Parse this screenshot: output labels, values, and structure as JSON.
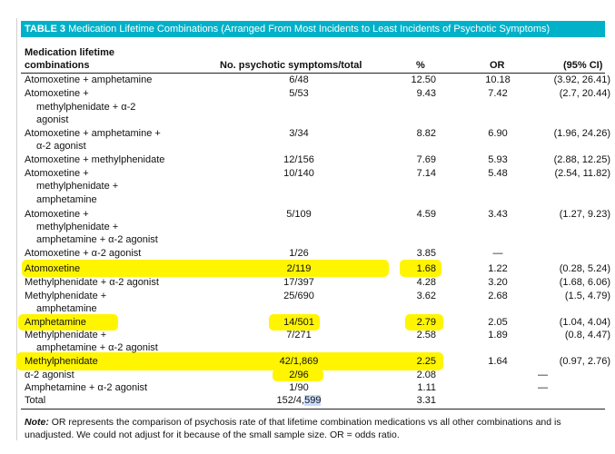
{
  "table": {
    "label": "TABLE 3",
    "title": "Medication Lifetime Combinations (Arranged From Most Incidents to Least Incidents of Psychotic Symptoms)",
    "headers": {
      "col1_line1": "Medication lifetime",
      "col1_line2": "combinations",
      "col2": "No. psychotic symptoms/total",
      "col3": "%",
      "col4": "OR",
      "col5": "(95% CI)"
    },
    "rows": [
      {
        "name": [
          "Atomoxetine + amphetamine"
        ],
        "ratio": "6/48",
        "pct": "12.50",
        "or": "10.18",
        "ci": "(3.92, 26.41)"
      },
      {
        "name": [
          "Atomoxetine +",
          "methylphenidate + α-2",
          "agonist"
        ],
        "ratio": "5/53",
        "pct": "9.43",
        "or": "7.42",
        "ci": "(2.7, 20.44)"
      },
      {
        "name": [
          "Atomoxetine + amphetamine +",
          "α-2 agonist"
        ],
        "ratio": "3/34",
        "pct": "8.82",
        "or": "6.90",
        "ci": "(1.96, 24.26)"
      },
      {
        "name": [
          "Atomoxetine + methylphenidate"
        ],
        "ratio": "12/156",
        "pct": "7.69",
        "or": "5.93",
        "ci": "(2.88, 12.25)"
      },
      {
        "name": [
          "Atomoxetine +",
          "methylphenidate +",
          "amphetamine"
        ],
        "ratio": "10/140",
        "pct": "7.14",
        "or": "5.48",
        "ci": "(2.54, 11.82)"
      },
      {
        "name": [
          "Atomoxetine +",
          "methylphenidate +",
          "amphetamine + α-2 agonist"
        ],
        "ratio": "5/109",
        "pct": "4.59",
        "or": "3.43",
        "ci": "(1.27, 9.23)"
      },
      {
        "name": [
          "Atomoxetine + α-2 agonist"
        ],
        "ratio": "1/26",
        "pct": "3.85",
        "or": "—",
        "ci": ""
      },
      {
        "name": [
          "Atomoxetine"
        ],
        "ratio": "2/119",
        "pct": "1.68",
        "or": "1.22",
        "ci": "(0.28, 5.24)"
      },
      {
        "name": [
          "Methylphenidate + α-2 agonist"
        ],
        "ratio": "17/397",
        "pct": "4.28",
        "or": "3.20",
        "ci": "(1.68, 6.06)"
      },
      {
        "name": [
          "Methylphenidate +",
          "amphetamine"
        ],
        "ratio": "25/690",
        "pct": "3.62",
        "or": "2.68",
        "ci": "(1.5, 4.79)"
      },
      {
        "name": [
          "Amphetamine"
        ],
        "ratio": "14/501",
        "pct": "2.79",
        "or": "2.05",
        "ci": "(1.04, 4.04)"
      },
      {
        "name": [
          "Methylphenidate +",
          "amphetamine + α-2 agonist"
        ],
        "ratio": "7/271",
        "pct": "2.58",
        "or": "1.89",
        "ci": "(0.8, 4.47)"
      },
      {
        "name": [
          "Methylphenidate"
        ],
        "ratio": "42/1,869",
        "pct": "2.25",
        "or": "1.64",
        "ci": "(0.97, 2.76)"
      },
      {
        "name": [
          "α-2 agonist"
        ],
        "ratio": "2/96",
        "pct": "2.08",
        "or": "",
        "ci": "—"
      },
      {
        "name": [
          "Amphetamine + α-2 agonist"
        ],
        "ratio": "1/90",
        "pct": "1.11",
        "or": "",
        "ci": "—"
      },
      {
        "name": [
          "Total"
        ],
        "ratio_a": "152/4,",
        "ratio_b": "599",
        "pct": "3.31",
        "or": "",
        "ci": ""
      }
    ],
    "note_label": "Note:",
    "note_text": " OR represents the comparison of psychosis rate of that lifetime combination medications vs all other combinations and is unadjusted. We could not adjust for it because of the small sample size. OR = odds ratio."
  },
  "colors": {
    "title_bar": "#00b1c9",
    "highlight": "#fff500",
    "text_selection": "#c9dcff"
  }
}
